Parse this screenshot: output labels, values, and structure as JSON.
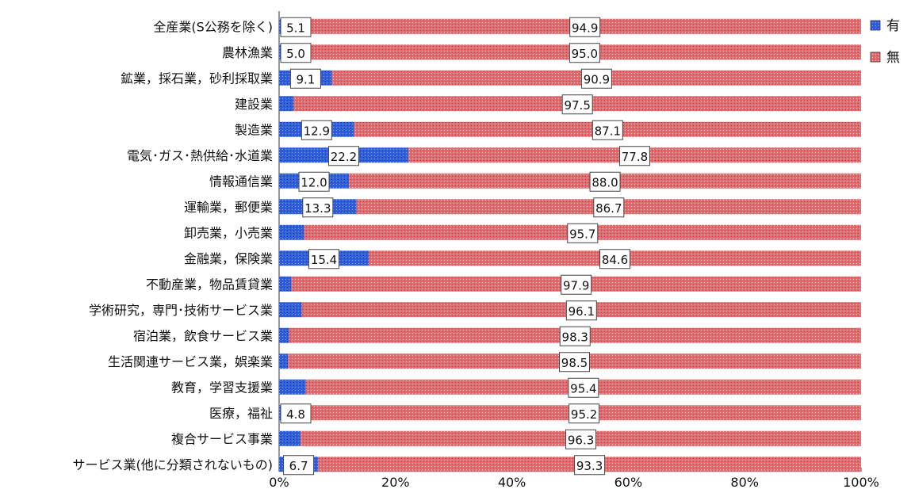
{
  "chart_data": {
    "type": "bar",
    "stacked": true,
    "orientation": "horizontal",
    "categories": [
      "全産業(S公務を除く)",
      "農林漁業",
      "鉱業，採石業，砂利採取業",
      "建設業",
      "製造業",
      "電気･ガス･熱供給･水道業",
      "情報通信業",
      "運輸業，郵便業",
      "卸売業，小売業",
      "金融業，保険業",
      "不動産業，物品賃貸業",
      "学術研究，専門･技術サービス業",
      "宿泊業，飲食サービス業",
      "生活関連サービス業，娯楽業",
      "教育，学習支援業",
      "医療，福祉",
      "複合サービス事業",
      "サービス業(他に分類されないもの)"
    ],
    "series": [
      {
        "name": "有",
        "color": "#2f5fe0",
        "values": [
          5.1,
          5.0,
          9.1,
          2.5,
          12.9,
          22.2,
          12.0,
          13.3,
          4.3,
          15.4,
          2.1,
          3.9,
          1.7,
          1.5,
          4.6,
          4.8,
          3.7,
          6.7
        ],
        "labels": [
          "5.1",
          "5.0",
          "9.1",
          "",
          "12.9",
          "22.2",
          "12.0",
          "13.3",
          "",
          "15.4",
          "",
          "",
          "",
          "",
          "",
          "4.8",
          "",
          "6.7"
        ]
      },
      {
        "name": "無",
        "color": "#e56a6e",
        "values": [
          94.9,
          95.0,
          90.9,
          97.5,
          87.1,
          77.8,
          88.0,
          86.7,
          95.7,
          84.6,
          97.9,
          96.1,
          98.3,
          98.5,
          95.4,
          95.2,
          96.3,
          93.3
        ],
        "labels": [
          "94.9",
          "95.0",
          "90.9",
          "97.5",
          "87.1",
          "77.8",
          "88.0",
          "86.7",
          "95.7",
          "84.6",
          "97.9",
          "96.1",
          "98.3",
          "98.5",
          "95.4",
          "95.2",
          "96.3",
          "93.3"
        ]
      }
    ],
    "x_ticks": [
      "0%",
      "20%",
      "40%",
      "60%",
      "80%",
      "100%"
    ],
    "xlim": [
      0,
      100
    ],
    "legend": {
      "position": "right",
      "entries": [
        "有",
        "無"
      ]
    },
    "grid": false
  }
}
